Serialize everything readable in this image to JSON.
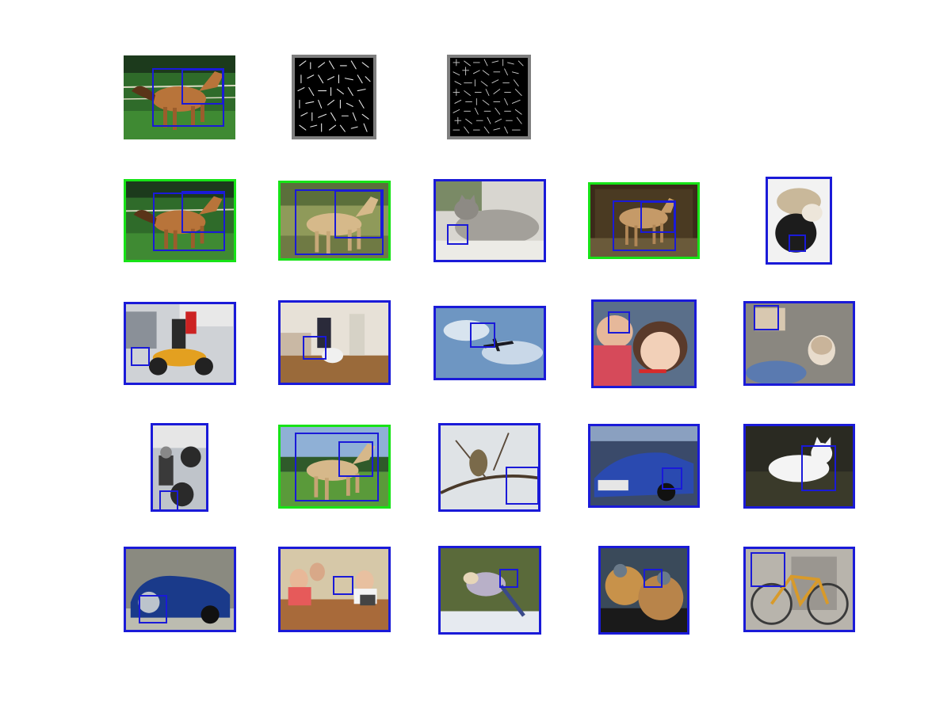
{
  "figure": {
    "query_row": [
      {
        "name": "query-image-horse",
        "subject": "horse-icon",
        "kind": "photo"
      },
      {
        "name": "hog-template-root",
        "subject": "hog-template-icon",
        "kind": "hog"
      },
      {
        "name": "hog-template-part",
        "subject": "hog-template-icon",
        "kind": "hog"
      }
    ],
    "frame_colors": {
      "correct": "#17e317",
      "incorrect": "#1a1ad8",
      "template": "#7f7f7f"
    },
    "results": [
      {
        "subject": "horse-icon",
        "correct": true
      },
      {
        "subject": "horse-icon",
        "correct": true
      },
      {
        "subject": "cat-icon",
        "correct": false
      },
      {
        "subject": "horse-icon",
        "correct": true
      },
      {
        "subject": "cat-dog-icon",
        "correct": false
      },
      {
        "subject": "motorbike-icon",
        "correct": false
      },
      {
        "subject": "dog-room-icon",
        "correct": false
      },
      {
        "subject": "airplane-icon",
        "correct": false
      },
      {
        "subject": "children-icon",
        "correct": false
      },
      {
        "subject": "puppy-icon",
        "correct": false
      },
      {
        "subject": "motorbike-icon",
        "correct": false
      },
      {
        "subject": "horse-icon",
        "correct": true
      },
      {
        "subject": "bird-icon",
        "correct": false
      },
      {
        "subject": "car-icon",
        "correct": false
      },
      {
        "subject": "cat-icon",
        "correct": false
      },
      {
        "subject": "car-icon",
        "correct": false
      },
      {
        "subject": "people-table-icon",
        "correct": false
      },
      {
        "subject": "bird-icon",
        "correct": false
      },
      {
        "subject": "dogs-icon",
        "correct": false
      },
      {
        "subject": "bicycle-icon",
        "correct": false
      }
    ]
  }
}
